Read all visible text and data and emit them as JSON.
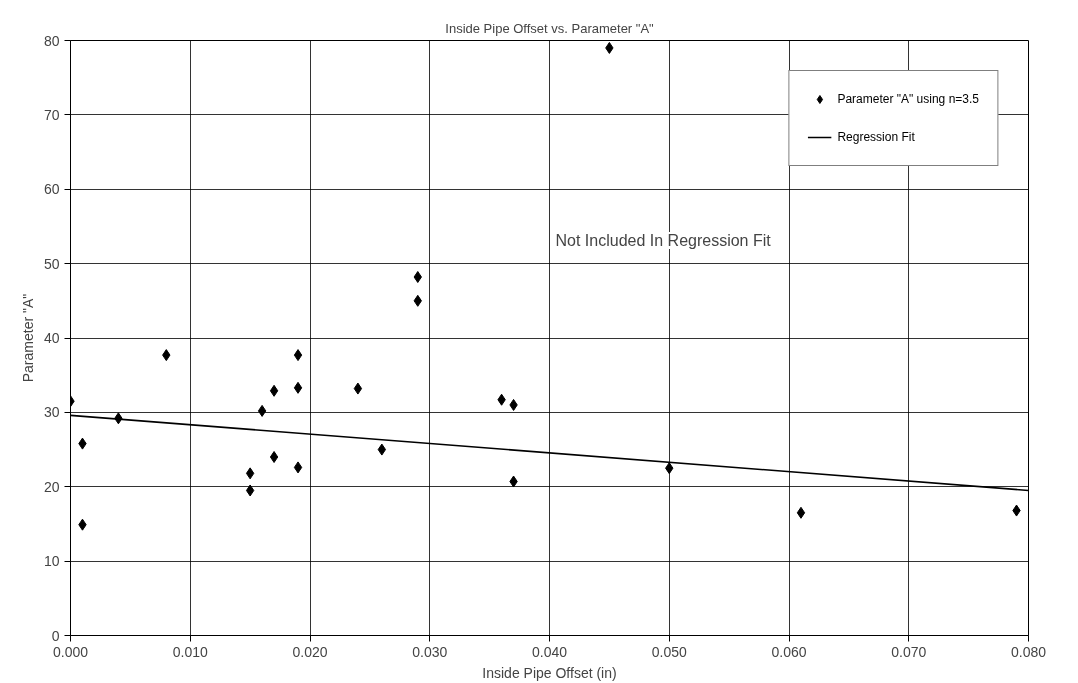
{
  "chart_data": {
    "type": "scatter",
    "title": "Inside Pipe Offset vs. Parameter \"A\"",
    "xlabel": "Inside Pipe Offset (in)",
    "ylabel": "Parameter \"A\"",
    "xlim": [
      0,
      0.08
    ],
    "xticks": [
      {
        "value": 0,
        "label": "0.000"
      },
      {
        "value": 0.01,
        "label": "0.010"
      },
      {
        "value": 0.02,
        "label": "0.020"
      },
      {
        "value": 0.03,
        "label": "0.030"
      },
      {
        "value": 0.04,
        "label": "0.040"
      },
      {
        "value": 0.05,
        "label": "0.050"
      },
      {
        "value": 0.06,
        "label": "0.060"
      },
      {
        "value": 0.07,
        "label": "0.070"
      },
      {
        "value": 0.08,
        "label": "0.080"
      }
    ],
    "ylim": [
      0,
      80
    ],
    "yticks": [
      0,
      10,
      20,
      30,
      40,
      50,
      60,
      70,
      80
    ],
    "grid": true,
    "legend": "top right",
    "series": [
      {
        "name": "Parameter \"A\" using n=3.5",
        "type": "scatter",
        "marker": "diamond",
        "color": "#000000",
        "x": [
          0.0,
          0.001,
          0.001,
          0.004,
          0.008,
          0.015,
          0.015,
          0.016,
          0.017,
          0.017,
          0.019,
          0.019,
          0.019,
          0.024,
          0.026,
          0.029,
          0.029,
          0.036,
          0.037,
          0.037,
          0.045,
          0.05,
          0.061,
          0.079
        ],
        "values": [
          31.5,
          25.8,
          14.9,
          29.2,
          37.7,
          21.8,
          19.5,
          30.2,
          32.9,
          24.0,
          37.7,
          33.3,
          22.6,
          33.2,
          25.0,
          48.2,
          45.0,
          31.7,
          31.0,
          20.7,
          79.0,
          22.5,
          16.5,
          16.8
        ]
      },
      {
        "name": "Regression Fit",
        "type": "line",
        "color": "#000000",
        "x": [
          0.0,
          0.08
        ],
        "values": [
          29.6,
          19.5
        ]
      }
    ],
    "annotations": [
      "Not Included In Regression Fit"
    ]
  }
}
